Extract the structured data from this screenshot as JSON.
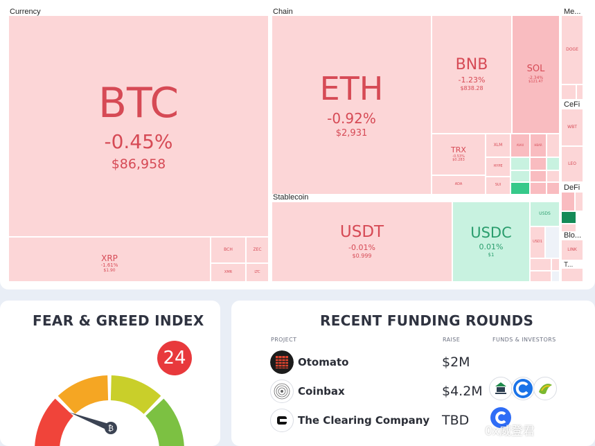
{
  "treemap": {
    "sections": {
      "currency": "Currency",
      "chain": "Chain",
      "meme": "Me...",
      "stablecoin": "Stablecoin",
      "cefi": "CeFi",
      "defi": "DeFi",
      "blockchain": "Blo...",
      "t_more": "T..."
    },
    "btc": {
      "name": "BTC",
      "change": "-0.45%",
      "price": "$86,958"
    },
    "xrp": {
      "name": "XRP",
      "change": "-1.61%",
      "price": "$1.90"
    },
    "bch": {
      "name": "BCH"
    },
    "zec": {
      "name": "ZEC"
    },
    "xmr": {
      "name": "XMR"
    },
    "ltc": {
      "name": "LTC"
    },
    "eth": {
      "name": "ETH",
      "change": "-0.92%",
      "price": "$2,931"
    },
    "bnb": {
      "name": "BNB",
      "change": "-1.23%",
      "price": "$838.28"
    },
    "sol": {
      "name": "SOL",
      "change": "-2.34%",
      "price": "$121.47"
    },
    "trx": {
      "name": "TRX",
      "change": "-0.53%",
      "price": "$0.283"
    },
    "xlm": {
      "name": "XLM"
    },
    "avax": {
      "name": "AVAX"
    },
    "hbar": {
      "name": "HBAR"
    },
    "ada": {
      "name": "ADA"
    },
    "hype": {
      "name": "HYPE"
    },
    "sui": {
      "name": "SUI"
    },
    "usdt": {
      "name": "USDT",
      "change": "-0.01%",
      "price": "$0.999"
    },
    "usdc": {
      "name": "USDC",
      "change": "0.01%",
      "price": "$1"
    },
    "usds": {
      "name": "USDS"
    },
    "usd1": {
      "name": "USD1"
    },
    "doge": {
      "name": "DOGE"
    },
    "wbt": {
      "name": "WBT"
    },
    "leo": {
      "name": "LEO"
    },
    "link": {
      "name": "LINK"
    }
  },
  "fear_greed": {
    "title": "FEAR & GREED INDEX",
    "value": "24",
    "value_fraction": 0.24,
    "colors": [
      "#f0443a",
      "#f5a623",
      "#c9cf2a",
      "#7cc142"
    ]
  },
  "funding": {
    "title": "RECENT FUNDING ROUNDS",
    "headers": {
      "project": "PROJECT",
      "raise": "RAISE",
      "investors": "FUNDS & INVESTORS"
    },
    "rows": [
      {
        "project": "Otomato",
        "raise": "$2M"
      },
      {
        "project": "Coinbax",
        "raise": "$4.2M"
      },
      {
        "project": "The Clearing Company",
        "raise": "TBD"
      }
    ]
  },
  "watermark": "0x威登君"
}
